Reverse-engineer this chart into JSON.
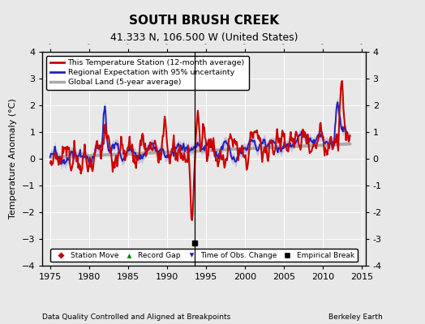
{
  "title": "SOUTH BRUSH CREEK",
  "subtitle": "41.333 N, 106.500 W (United States)",
  "ylabel": "Temperature Anomaly (°C)",
  "xlabel_left": "Data Quality Controlled and Aligned at Breakpoints",
  "xlabel_right": "Berkeley Earth",
  "xlim": [
    1974.0,
    2015.5
  ],
  "ylim": [
    -4,
    4
  ],
  "yticks": [
    -4,
    -3,
    -2,
    -1,
    0,
    1,
    2,
    3,
    4
  ],
  "xticks": [
    1975,
    1980,
    1985,
    1990,
    1995,
    2000,
    2005,
    2010,
    2015
  ],
  "bg_color": "#e8e8e8",
  "empirical_break_x": 1993.5,
  "empirical_break_y": -3.15,
  "line_color_station": "#cc0000",
  "line_color_regional": "#2222bb",
  "line_color_global": "#aaaaaa",
  "uncertainty_color": "#aaaadd"
}
